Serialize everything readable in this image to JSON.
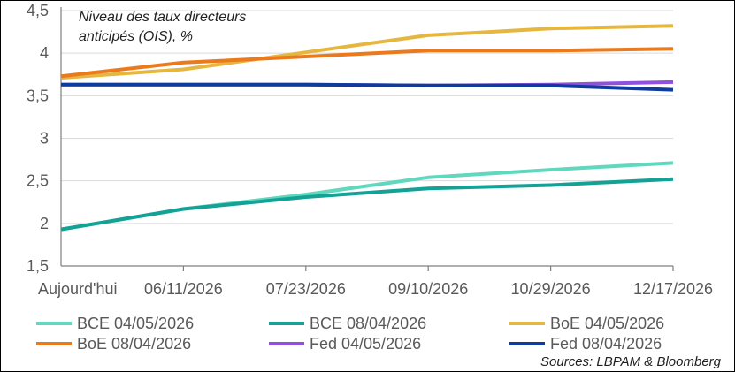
{
  "chart_data": {
    "type": "line",
    "title": "",
    "annotation": [
      "Niveau des taux directeurs",
      "anticipés (OIS), %"
    ],
    "source": "Sources: LBPAM & Bloomberg",
    "xlabel": "",
    "ylabel": "",
    "categories": [
      "Aujourd'hui",
      "06/11/2026",
      "07/23/2026",
      "09/10/2026",
      "10/29/2026",
      "12/17/2026"
    ],
    "y_ticks": [
      "1,5",
      "2",
      "2,5",
      "3",
      "3,5",
      "4",
      "4,5"
    ],
    "ylim": [
      1.5,
      4.5
    ],
    "grid": true,
    "legend_position": "bottom",
    "series": [
      {
        "name": "BCE 04/05/2026",
        "color": "#5fd8bd",
        "values": [
          1.93,
          2.17,
          2.34,
          2.54,
          2.63,
          2.71
        ]
      },
      {
        "name": "BCE 08/04/2026",
        "color": "#13a295",
        "values": [
          1.93,
          2.17,
          2.31,
          2.41,
          2.45,
          2.52
        ]
      },
      {
        "name": "BoE 04/05/2026",
        "color": "#e6b73f",
        "values": [
          3.71,
          3.81,
          4.01,
          4.21,
          4.29,
          4.32
        ]
      },
      {
        "name": "BoE 08/04/2026",
        "color": "#ea7a1c",
        "values": [
          3.73,
          3.89,
          3.96,
          4.03,
          4.03,
          4.05
        ]
      },
      {
        "name": "Fed 04/05/2026",
        "color": "#9250e1",
        "values": [
          3.63,
          3.63,
          3.63,
          3.62,
          3.63,
          3.66
        ]
      },
      {
        "name": "Fed 08/04/2026",
        "color": "#0e3c9e",
        "values": [
          3.63,
          3.63,
          3.63,
          3.62,
          3.62,
          3.57
        ]
      }
    ]
  }
}
